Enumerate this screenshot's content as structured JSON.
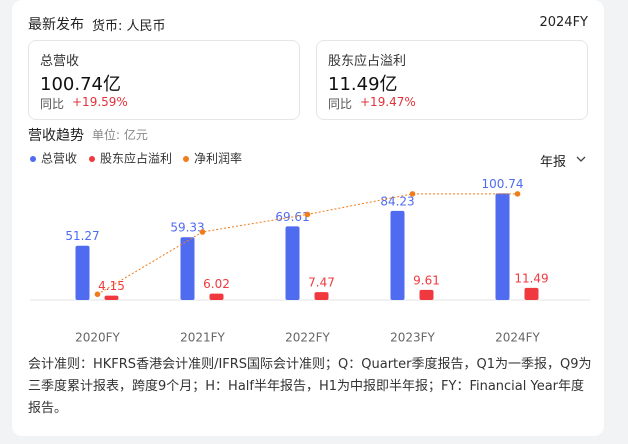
{
  "header": {
    "title": "最新发布",
    "currency": "货币: 人民币",
    "period": "2024FY"
  },
  "cards": [
    {
      "label": "总营收",
      "value": "100.74亿",
      "yoy_label": "同比",
      "yoy": "+19.59%"
    },
    {
      "label": "股东应占溢利",
      "value": "11.49亿",
      "yoy_label": "同比",
      "yoy": "+19.47%"
    }
  ],
  "chart_data": {
    "type": "bar",
    "title": "营收趋势",
    "unit": "单位: 亿元",
    "period_selector": "年报",
    "categories": [
      "2020FY",
      "2021FY",
      "2022FY",
      "2023FY",
      "2024FY"
    ],
    "series": [
      {
        "name": "总营收",
        "color": "#4f6bf0",
        "values": [
          51.27,
          59.33,
          69.61,
          84.23,
          100.74
        ]
      },
      {
        "name": "股东应占溢利",
        "color": "#f0393f",
        "values": [
          4.15,
          6.02,
          7.47,
          9.61,
          11.49
        ]
      },
      {
        "name": "净利润率",
        "color": "#f07c1a",
        "values": [
          8.09,
          10.15,
          10.73,
          11.41,
          11.41
        ],
        "axis": "y2"
      }
    ],
    "ylim": [
      0,
      120
    ],
    "y2lim": [
      7.9,
      12.1
    ]
  },
  "footnote": "会计准则：HKFRS香港会计准则/IFRS国际会计准则；Q：Quarter季度报告，Q1为一季报，Q9为三季度累计报表，跨度9个月；H：Half半年报告，H1为中报即半年报；FY：Financial Year年度报告。"
}
